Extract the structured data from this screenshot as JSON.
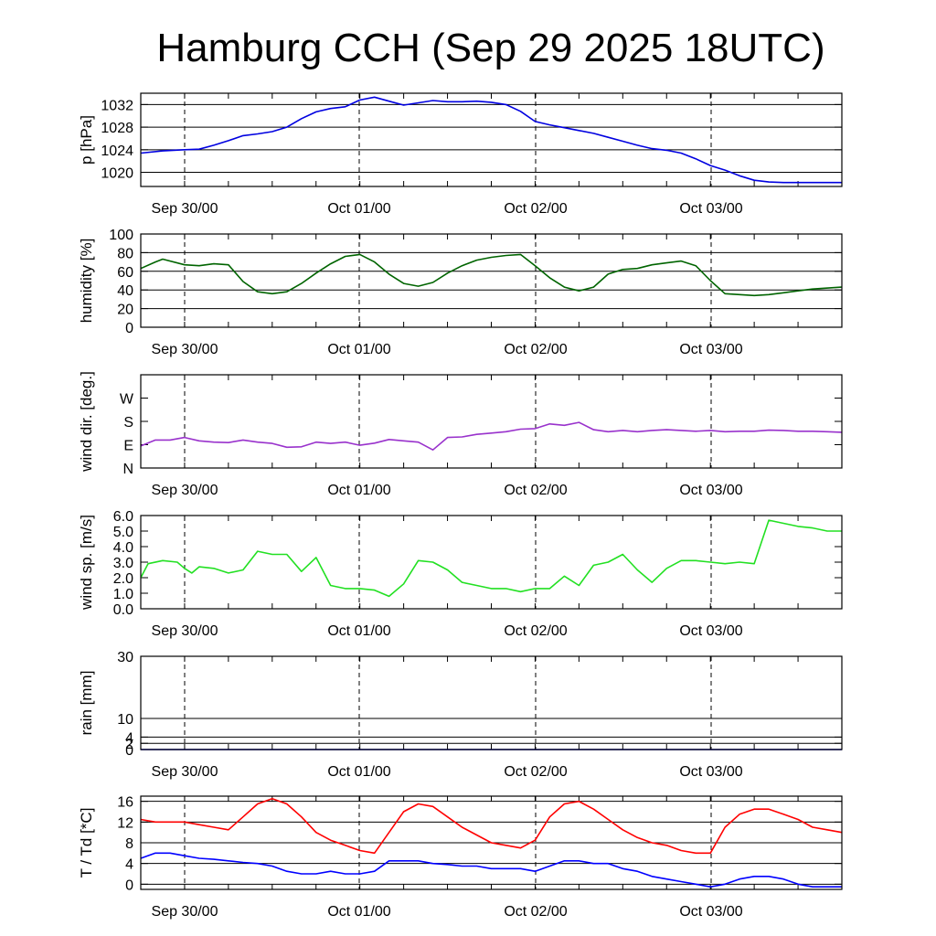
{
  "title": "Hamburg CCH (Sep 29 2025 18UTC)",
  "x_ticks": [
    "Sep 30/00",
    "Oct 01/00",
    "Oct 02/00",
    "Oct 03/00"
  ],
  "chart_data": [
    {
      "type": "line",
      "ylabel": "p [hPa]",
      "x_unit": "hours since Sep 29 18UTC",
      "yticks": [
        "1032",
        "1028",
        "1024",
        "1020"
      ],
      "ytick_values": [
        1032,
        1028,
        1024,
        1020
      ],
      "ylim": [
        1017.5,
        1034
      ],
      "grid": true,
      "series": [
        {
          "color": "#0000e0",
          "x": [
            0,
            3,
            6,
            8,
            10,
            12,
            14,
            16,
            18,
            20,
            22,
            24,
            26,
            28,
            30,
            32,
            34,
            36,
            38,
            40,
            42,
            44,
            46,
            48,
            50,
            52,
            54,
            56,
            58,
            60,
            62,
            64,
            66,
            68,
            70,
            72,
            74,
            76,
            78,
            80,
            82,
            84,
            86,
            88,
            90,
            92,
            94,
            96
          ],
          "values": [
            1023.4,
            1023.8,
            1024,
            1024.1,
            1024.8,
            1025.6,
            1026.5,
            1026.8,
            1027.2,
            1028.0,
            1029.5,
            1030.7,
            1031.3,
            1031.6,
            1032.8,
            1033.3,
            1032.6,
            1031.9,
            1032.3,
            1032.7,
            1032.5,
            1032.5,
            1032.6,
            1032.4,
            1032.0,
            1030.8,
            1029.0,
            1028.4,
            1027.9,
            1027.4,
            1026.9,
            1026.2,
            1025.5,
            1024.8,
            1024.2,
            1023.9,
            1023.4,
            1022.4,
            1021.2,
            1020.4,
            1019.4,
            1018.6,
            1018.3,
            1018.2,
            1018.2,
            1018.2,
            1018.2,
            1018.2
          ]
        }
      ]
    },
    {
      "type": "line",
      "ylabel": "humidity [%]",
      "x_unit": "hours since Sep 29 18UTC",
      "yticks": [
        "100",
        "80",
        "60",
        "40",
        "20",
        "0"
      ],
      "ytick_values": [
        100,
        80,
        60,
        40,
        20,
        0
      ],
      "ylim": [
        0,
        100
      ],
      "grid": true,
      "series": [
        {
          "color": "#006400",
          "x": [
            0,
            2,
            3,
            6,
            8,
            10,
            12,
            14,
            16,
            18,
            20,
            22,
            24,
            26,
            28,
            30,
            32,
            34,
            36,
            38,
            40,
            42,
            44,
            46,
            48,
            50,
            52,
            54,
            56,
            58,
            60,
            62,
            64,
            66,
            68,
            70,
            72,
            74,
            76,
            78,
            80,
            82,
            84,
            86,
            88,
            90,
            92,
            96
          ],
          "values": [
            63,
            70,
            73,
            67,
            66,
            68,
            67,
            49,
            38,
            36,
            38,
            47,
            58,
            68,
            76,
            78,
            70,
            57,
            47,
            44,
            48,
            58,
            66,
            72,
            75,
            77,
            78,
            66,
            53,
            43,
            39,
            43,
            57,
            62,
            63,
            67,
            69,
            71,
            66,
            50,
            36,
            35,
            34,
            35,
            37,
            39,
            41,
            43
          ]
        }
      ]
    },
    {
      "type": "line",
      "ylabel": "wind dir. [deg.]",
      "x_unit": "hours since Sep 29 18UTC",
      "yticks": [
        "W",
        "S",
        "E",
        "N"
      ],
      "ytick_values": [
        270,
        180,
        90,
        0
      ],
      "ylim": [
        0,
        360
      ],
      "grid": false,
      "series": [
        {
          "color": "#9932cc",
          "x": [
            0,
            2,
            4,
            6,
            8,
            10,
            12,
            14,
            16,
            18,
            20,
            22,
            24,
            26,
            28,
            30,
            32,
            34,
            36,
            38,
            40,
            42,
            44,
            46,
            48,
            50,
            52,
            54,
            56,
            58,
            60,
            62,
            64,
            66,
            68,
            70,
            72,
            74,
            76,
            78,
            80,
            82,
            84,
            86,
            88,
            90,
            92,
            94,
            96
          ],
          "values": [
            85,
            108,
            108,
            118,
            105,
            100,
            98,
            108,
            100,
            95,
            80,
            82,
            100,
            95,
            100,
            88,
            96,
            110,
            105,
            100,
            70,
            118,
            120,
            130,
            135,
            140,
            150,
            152,
            170,
            165,
            176,
            148,
            140,
            145,
            140,
            145,
            148,
            145,
            142,
            145,
            140,
            142,
            142,
            146,
            145,
            142,
            142,
            140,
            138
          ]
        }
      ]
    },
    {
      "type": "line",
      "ylabel": "wind sp. [m/s]",
      "x_unit": "hours since Sep 29 18UTC",
      "yticks": [
        "6.0",
        "5.0",
        "4.0",
        "3.0",
        "2.0",
        "1.0",
        "0.0"
      ],
      "ytick_values": [
        6.0,
        5.0,
        4.0,
        3.0,
        2.0,
        1.0,
        0.0
      ],
      "ylim": [
        0,
        6.0
      ],
      "grid": false,
      "series": [
        {
          "color": "#22e022",
          "x": [
            0,
            1,
            3,
            5,
            6,
            7,
            8,
            10,
            12,
            14,
            16,
            18,
            20,
            22,
            24,
            26,
            28,
            30,
            32,
            34,
            36,
            38,
            40,
            42,
            44,
            46,
            48,
            50,
            52,
            54,
            56,
            58,
            60,
            62,
            64,
            66,
            68,
            70,
            72,
            74,
            76,
            78,
            80,
            82,
            84,
            86,
            88,
            90,
            92,
            94,
            96
          ],
          "values": [
            2.0,
            2.9,
            3.1,
            3.0,
            2.6,
            2.3,
            2.7,
            2.6,
            2.3,
            2.5,
            3.7,
            3.5,
            3.5,
            2.4,
            3.3,
            1.5,
            1.3,
            1.3,
            1.2,
            0.8,
            1.6,
            3.1,
            3.0,
            2.5,
            1.7,
            1.5,
            1.3,
            1.3,
            1.1,
            1.3,
            1.3,
            2.1,
            1.5,
            2.8,
            3.0,
            3.5,
            2.5,
            1.7,
            2.6,
            3.1,
            3.1,
            3.0,
            2.9,
            3.0,
            2.9,
            5.7,
            5.5,
            5.3,
            5.2,
            5.0,
            5.0
          ]
        }
      ]
    },
    {
      "type": "line",
      "ylabel": "rain [mm]",
      "x_unit": "hours since Sep 29 18UTC",
      "yticks": [
        "30",
        "10",
        "4",
        "2",
        "0"
      ],
      "ytick_values": [
        30,
        10,
        4,
        2,
        0
      ],
      "ylim": [
        0,
        30
      ],
      "grid": true,
      "series": [
        {
          "color": "#0000cc",
          "x": [
            0,
            96
          ],
          "values": [
            0,
            0
          ]
        }
      ]
    },
    {
      "type": "line",
      "ylabel": "T / Td [*C]",
      "x_unit": "hours since Sep 29 18UTC",
      "yticks": [
        "16",
        "12",
        "8",
        "4",
        "0"
      ],
      "ytick_values": [
        16,
        12,
        8,
        4,
        0
      ],
      "ylim": [
        -1,
        17
      ],
      "grid": true,
      "series": [
        {
          "color": "#ff0000",
          "x": [
            0,
            2,
            4,
            6,
            8,
            10,
            12,
            14,
            16,
            18,
            20,
            22,
            24,
            26,
            28,
            30,
            32,
            34,
            36,
            38,
            40,
            42,
            44,
            46,
            48,
            50,
            52,
            54,
            56,
            58,
            60,
            62,
            64,
            66,
            68,
            70,
            72,
            74,
            76,
            78,
            80,
            82,
            84,
            86,
            88,
            90,
            92,
            94,
            96
          ],
          "values": [
            12.5,
            12.0,
            12.0,
            12.0,
            11.5,
            11.0,
            10.5,
            13.0,
            15.5,
            16.5,
            15.5,
            13.0,
            10.0,
            8.5,
            7.5,
            6.5,
            6.0,
            10.0,
            14.0,
            15.5,
            15.0,
            13.0,
            11.0,
            9.5,
            8.0,
            7.5,
            7.0,
            8.5,
            13.0,
            15.5,
            16.0,
            14.5,
            12.5,
            10.5,
            9.0,
            8.0,
            7.5,
            6.5,
            6.0,
            6.0,
            11.0,
            13.5,
            14.5,
            14.5,
            13.5,
            12.5,
            11.0,
            10.5,
            10.0
          ]
        },
        {
          "color": "#0000ff",
          "x": [
            0,
            2,
            4,
            6,
            8,
            10,
            12,
            14,
            16,
            18,
            20,
            22,
            24,
            26,
            28,
            30,
            32,
            34,
            36,
            38,
            40,
            42,
            44,
            46,
            48,
            50,
            52,
            54,
            56,
            58,
            60,
            62,
            64,
            66,
            68,
            70,
            72,
            74,
            76,
            78,
            80,
            82,
            84,
            86,
            88,
            90,
            92,
            94,
            96
          ],
          "values": [
            5.0,
            6.0,
            6.0,
            5.5,
            5.0,
            4.8,
            4.5,
            4.2,
            4.0,
            3.5,
            2.5,
            2.0,
            2.0,
            2.5,
            2.0,
            2.0,
            2.5,
            4.5,
            4.5,
            4.5,
            4.0,
            3.8,
            3.5,
            3.5,
            3.0,
            3.0,
            3.0,
            2.5,
            3.5,
            4.5,
            4.5,
            4.0,
            4.0,
            3.0,
            2.5,
            1.5,
            1.0,
            0.5,
            0.0,
            -0.5,
            0.0,
            1.0,
            1.5,
            1.5,
            1.0,
            0.0,
            -0.5,
            -0.5,
            -0.5
          ]
        }
      ]
    }
  ]
}
